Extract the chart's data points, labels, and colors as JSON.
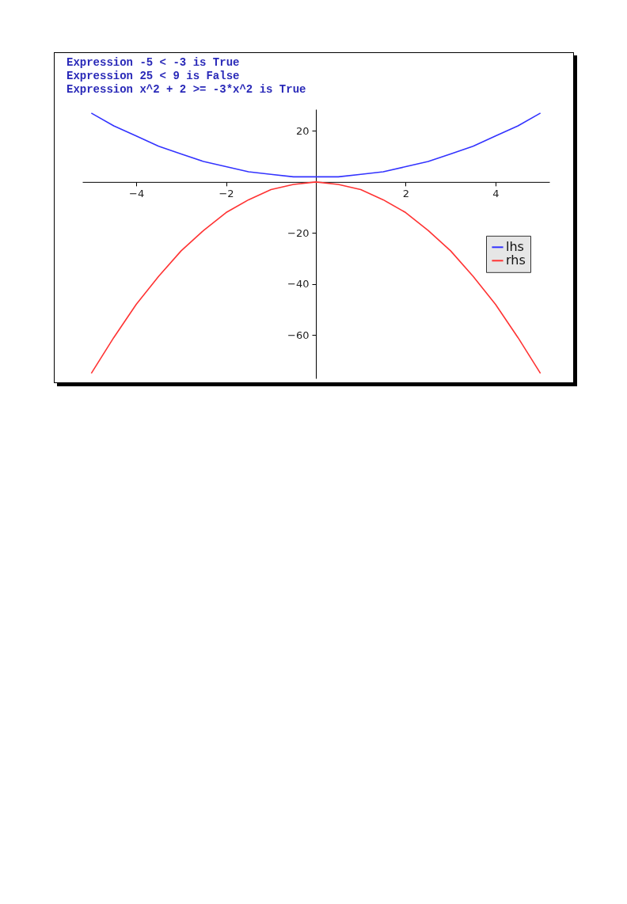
{
  "chart_data": {
    "type": "line",
    "annotations": [
      "Expression -5 < -3 is True",
      "Expression 25 < 9 is False",
      "Expression x^2 + 2 >= -3*x^2 is True"
    ],
    "x": [
      -5,
      -4.5,
      -4,
      -3.5,
      -3,
      -2.5,
      -2,
      -1.5,
      -1,
      -0.5,
      0,
      0.5,
      1,
      1.5,
      2,
      2.5,
      3,
      3.5,
      4,
      4.5,
      5
    ],
    "series": [
      {
        "name": "lhs",
        "color": "#3333ff",
        "values": [
          27,
          22,
          18,
          14,
          11,
          8,
          6,
          4,
          3,
          2,
          2,
          2,
          3,
          4,
          6,
          8,
          11,
          14,
          18,
          22,
          27
        ]
      },
      {
        "name": "rhs",
        "color": "#ff3333",
        "values": [
          -75,
          -61,
          -48,
          -37,
          -27,
          -19,
          -12,
          -7,
          -3,
          -1,
          0,
          -1,
          -3,
          -7,
          -12,
          -19,
          -27,
          -37,
          -48,
          -61,
          -75
        ]
      }
    ],
    "xlim": [
      -5.2,
      5.2
    ],
    "ylim": [
      -77,
      28.5
    ],
    "xticks": [
      -4,
      -2,
      2,
      4
    ],
    "yticks": [
      -60,
      -40,
      -20,
      20
    ],
    "grid": false,
    "legend": "right",
    "line_style": "solid",
    "marker": "none"
  }
}
